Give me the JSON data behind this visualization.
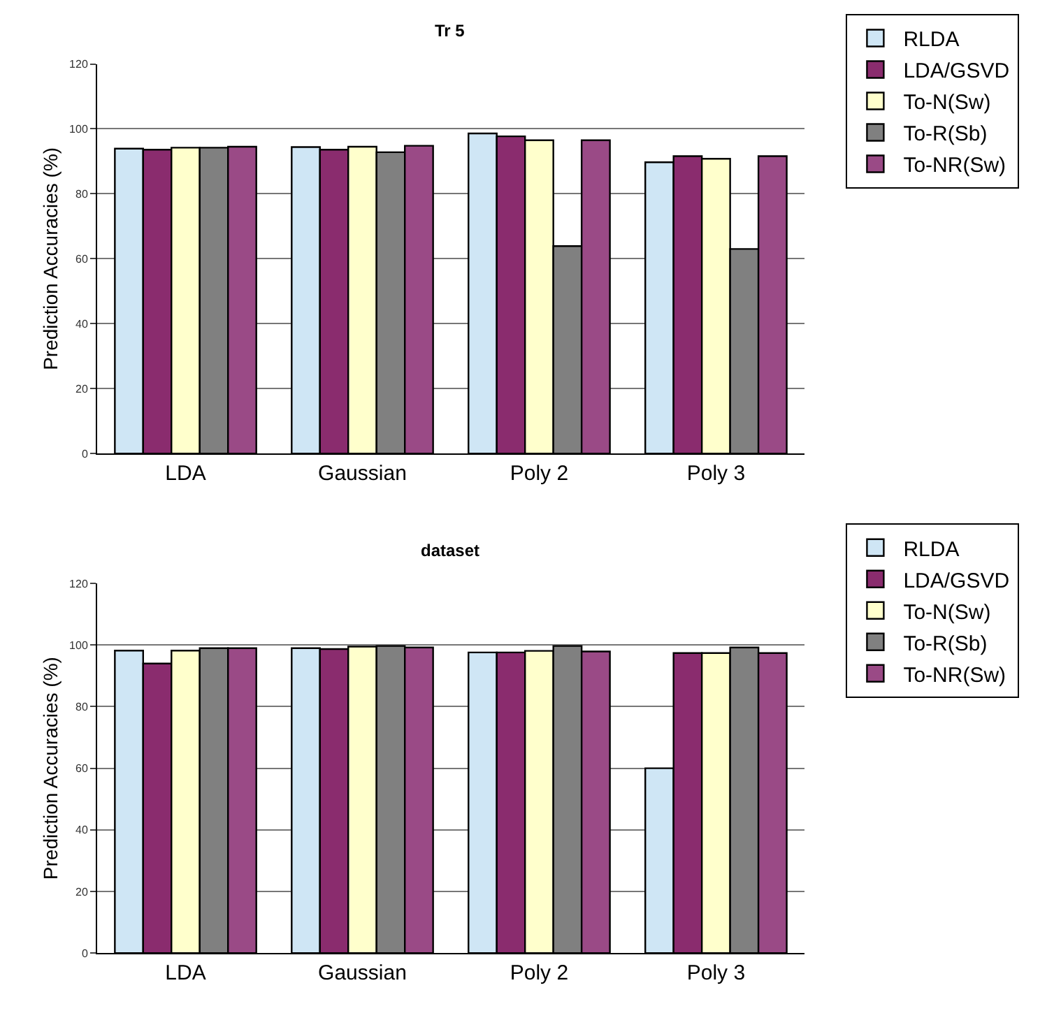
{
  "chart_data": [
    {
      "type": "bar",
      "title": "Tr 5",
      "ylabel": "Prediction Accuracies (%)",
      "categories": [
        "LDA",
        "Gaussian",
        "Poly 2",
        "Poly 3"
      ],
      "series": [
        {
          "name": "RLDA",
          "color": "#cfe6f5",
          "values": [
            93.9,
            94.4,
            98.6,
            89.7
          ]
        },
        {
          "name": "LDA/GSVD",
          "color": "#8a2c6e",
          "values": [
            93.6,
            93.6,
            97.7,
            91.6
          ]
        },
        {
          "name": "To-N(Sw)",
          "color": "#ffffcc",
          "values": [
            94.2,
            94.5,
            96.5,
            90.8
          ]
        },
        {
          "name": "To-R(Sb)",
          "color": "#808080",
          "values": [
            94.2,
            92.8,
            63.9,
            63.0
          ]
        },
        {
          "name": "To-NR(Sw)",
          "color": "#9a4a86",
          "values": [
            94.5,
            94.8,
            96.5,
            91.6
          ]
        }
      ],
      "ylim": [
        0,
        120
      ],
      "yticks": [
        0,
        20,
        40,
        60,
        80,
        100,
        120
      ],
      "grid": "y",
      "legend": "right"
    },
    {
      "type": "bar",
      "title": "dataset",
      "ylabel": "Prediction Accuracies (%)",
      "categories": [
        "LDA",
        "Gaussian",
        "Poly 2",
        "Poly 3"
      ],
      "series": [
        {
          "name": "RLDA",
          "color": "#cfe6f5",
          "values": [
            98.2,
            99.0,
            97.6,
            60.0
          ]
        },
        {
          "name": "LDA/GSVD",
          "color": "#8a2c6e",
          "values": [
            94.0,
            98.7,
            97.6,
            97.4
          ]
        },
        {
          "name": "To-N(Sw)",
          "color": "#ffffcc",
          "values": [
            98.2,
            99.5,
            98.1,
            97.4
          ]
        },
        {
          "name": "To-R(Sb)",
          "color": "#808080",
          "values": [
            99.0,
            99.7,
            99.7,
            99.2
          ]
        },
        {
          "name": "To-NR(Sw)",
          "color": "#9a4a86",
          "values": [
            99.0,
            99.2,
            97.9,
            97.4
          ]
        }
      ],
      "ylim": [
        0,
        120
      ],
      "yticks": [
        0,
        20,
        40,
        60,
        80,
        100,
        120
      ],
      "grid": "y",
      "legend": "right"
    }
  ]
}
